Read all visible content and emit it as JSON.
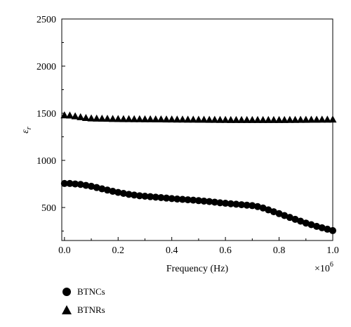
{
  "chart_data": {
    "type": "scatter",
    "title": "",
    "xlabel": "Frequency (Hz)",
    "ylabel": "ε",
    "ylabel_subscript": "r",
    "x_multiplier_label": "×10",
    "x_multiplier_exponent": "6",
    "xlim": [
      -0.01,
      1.0
    ],
    "ylim": [
      150,
      2500
    ],
    "x_ticks": [
      0.0,
      0.2,
      0.4,
      0.6,
      0.8,
      1.0
    ],
    "x_tick_labels": [
      "0.0",
      "0.2",
      "0.4",
      "0.6",
      "0.8",
      "1.0"
    ],
    "y_ticks": [
      500,
      1000,
      1500,
      2000,
      2500
    ],
    "y_tick_labels": [
      "500",
      "1000",
      "1500",
      "2000",
      "2500"
    ],
    "grid": false,
    "legend_position": "bottom-left, below plot",
    "series": [
      {
        "name": "BTNCs",
        "marker": "circle",
        "color": "#000000",
        "x": [
          0.0,
          0.02,
          0.04,
          0.06,
          0.08,
          0.1,
          0.12,
          0.14,
          0.16,
          0.18,
          0.2,
          0.22,
          0.24,
          0.26,
          0.28,
          0.3,
          0.32,
          0.34,
          0.36,
          0.38,
          0.4,
          0.42,
          0.44,
          0.46,
          0.48,
          0.5,
          0.52,
          0.54,
          0.56,
          0.58,
          0.6,
          0.62,
          0.64,
          0.66,
          0.68,
          0.7,
          0.72,
          0.74,
          0.76,
          0.78,
          0.8,
          0.82,
          0.84,
          0.86,
          0.88,
          0.9,
          0.92,
          0.94,
          0.96,
          0.98,
          1.0
        ],
        "y": [
          755,
          755,
          750,
          745,
          735,
          725,
          712,
          698,
          685,
          672,
          660,
          650,
          640,
          632,
          625,
          620,
          615,
          610,
          605,
          600,
          595,
          590,
          586,
          582,
          578,
          573,
          568,
          563,
          557,
          550,
          545,
          540,
          535,
          530,
          525,
          520,
          510,
          495,
          475,
          455,
          435,
          415,
          395,
          375,
          355,
          335,
          318,
          300,
          285,
          270,
          255
        ]
      },
      {
        "name": "BTNRs",
        "marker": "triangle",
        "color": "#000000",
        "x": [
          0.0,
          0.02,
          0.04,
          0.06,
          0.08,
          0.1,
          0.12,
          0.14,
          0.16,
          0.18,
          0.2,
          0.22,
          0.24,
          0.26,
          0.28,
          0.3,
          0.32,
          0.34,
          0.36,
          0.38,
          0.4,
          0.42,
          0.44,
          0.46,
          0.48,
          0.5,
          0.52,
          0.54,
          0.56,
          0.58,
          0.6,
          0.62,
          0.64,
          0.66,
          0.68,
          0.7,
          0.72,
          0.74,
          0.76,
          0.78,
          0.8,
          0.82,
          0.84,
          0.86,
          0.88,
          0.9,
          0.92,
          0.94,
          0.96,
          0.98,
          1.0
        ],
        "y": [
          1480,
          1478,
          1470,
          1460,
          1452,
          1447,
          1445,
          1444,
          1443,
          1442,
          1441,
          1440,
          1440,
          1439,
          1439,
          1438,
          1438,
          1437,
          1437,
          1436,
          1436,
          1435,
          1435,
          1434,
          1434,
          1433,
          1433,
          1432,
          1432,
          1431,
          1431,
          1430,
          1430,
          1430,
          1430,
          1430,
          1430,
          1430,
          1430,
          1430,
          1430,
          1430,
          1431,
          1431,
          1432,
          1432,
          1433,
          1433,
          1434,
          1434,
          1435
        ]
      }
    ]
  }
}
